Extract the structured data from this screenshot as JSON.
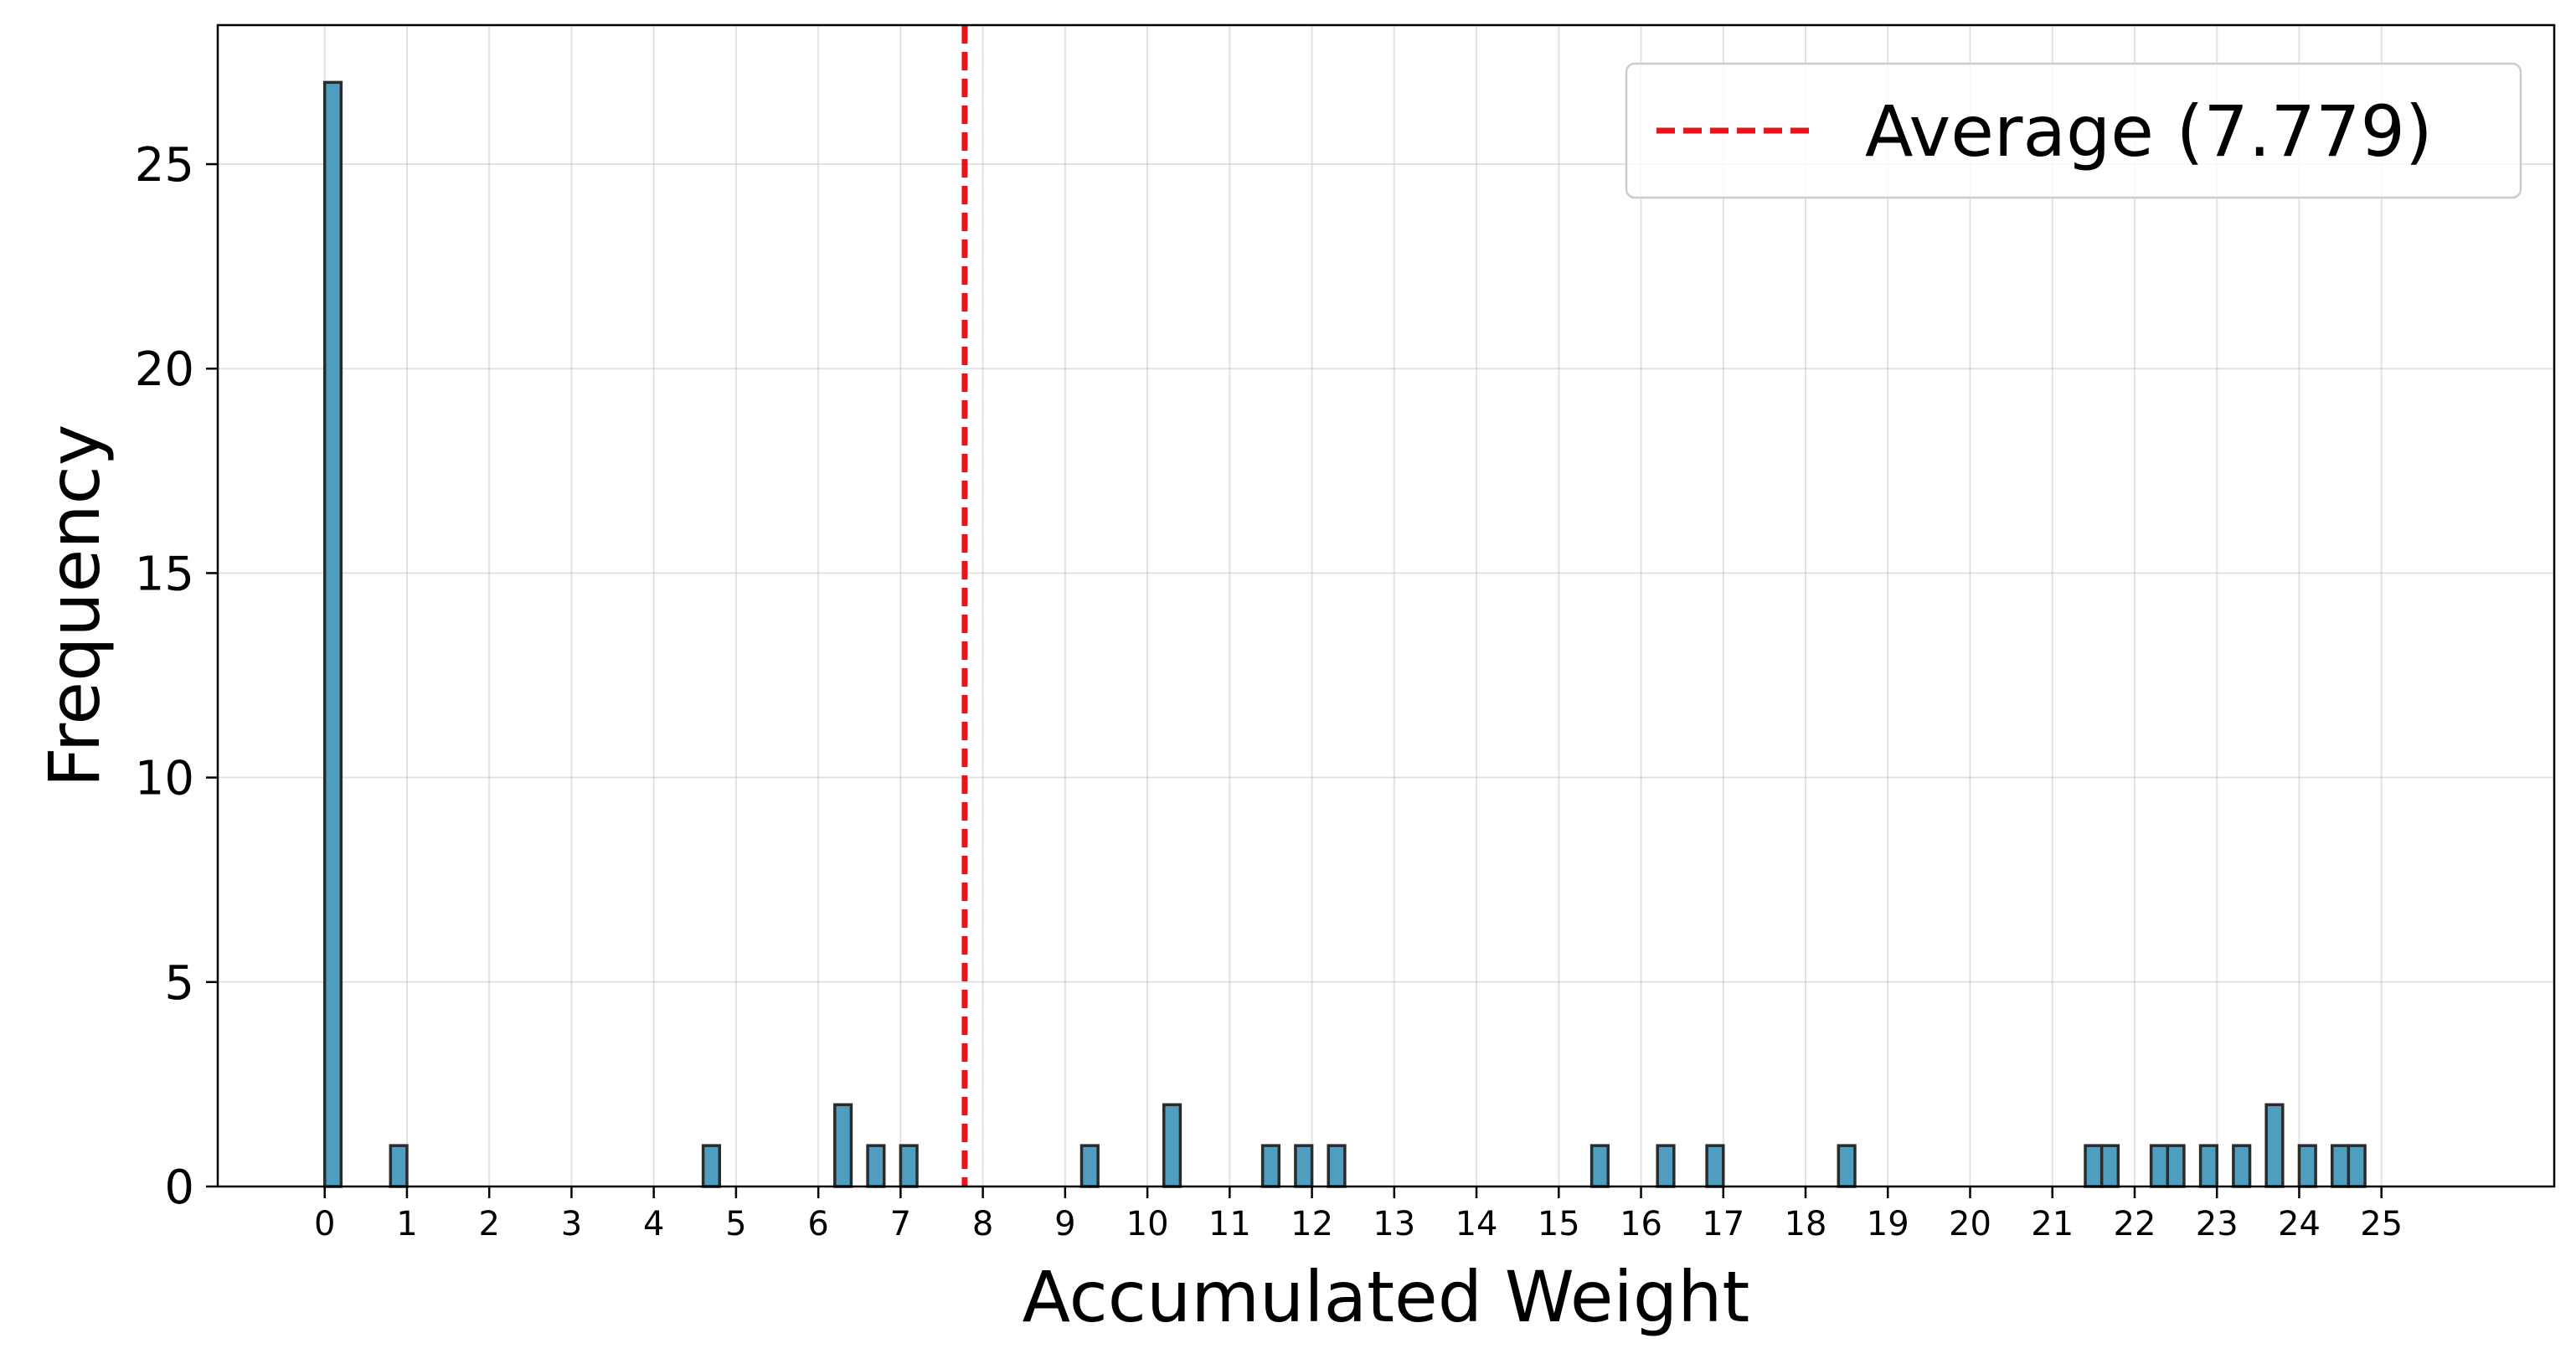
{
  "chart_data": {
    "type": "bar",
    "title": "",
    "xlabel": "Accumulated Weight",
    "ylabel": "Frequency",
    "xlim": [
      -1.3,
      27.1
    ],
    "ylim": [
      0,
      28.4
    ],
    "x_ticks": [
      "0",
      "1",
      "2",
      "3",
      "4",
      "5",
      "6",
      "7",
      "8",
      "9",
      "10",
      "11",
      "12",
      "13",
      "14",
      "15",
      "16",
      "17",
      "18",
      "19",
      "20",
      "21",
      "22",
      "23",
      "24",
      "25"
    ],
    "y_ticks": [
      "0",
      "5",
      "10",
      "15",
      "20",
      "25"
    ],
    "grid": true,
    "bin_width": 0.2,
    "bars": [
      {
        "x": 0.1,
        "count": 27
      },
      {
        "x": 0.9,
        "count": 1
      },
      {
        "x": 4.7,
        "count": 1
      },
      {
        "x": 6.3,
        "count": 2
      },
      {
        "x": 6.7,
        "count": 1
      },
      {
        "x": 7.1,
        "count": 1
      },
      {
        "x": 9.3,
        "count": 1
      },
      {
        "x": 10.3,
        "count": 2
      },
      {
        "x": 11.5,
        "count": 1
      },
      {
        "x": 11.9,
        "count": 1
      },
      {
        "x": 12.3,
        "count": 1
      },
      {
        "x": 15.5,
        "count": 1
      },
      {
        "x": 16.3,
        "count": 1
      },
      {
        "x": 16.9,
        "count": 1
      },
      {
        "x": 18.5,
        "count": 1
      },
      {
        "x": 21.5,
        "count": 1
      },
      {
        "x": 21.7,
        "count": 1
      },
      {
        "x": 22.3,
        "count": 1
      },
      {
        "x": 22.5,
        "count": 1
      },
      {
        "x": 22.9,
        "count": 1
      },
      {
        "x": 23.3,
        "count": 1
      },
      {
        "x": 23.7,
        "count": 2
      },
      {
        "x": 24.1,
        "count": 1
      },
      {
        "x": 24.5,
        "count": 1
      },
      {
        "x": 24.7,
        "count": 1
      }
    ],
    "average": {
      "value": 7.779,
      "label": "Average (7.779)",
      "color": "#e8141a",
      "style": "dashed"
    },
    "bar_color": "#4f9ec0",
    "bar_edge_color": "#2b2b2b",
    "legend": {
      "position": "top-right",
      "entries": [
        "Average (7.779)"
      ]
    }
  }
}
